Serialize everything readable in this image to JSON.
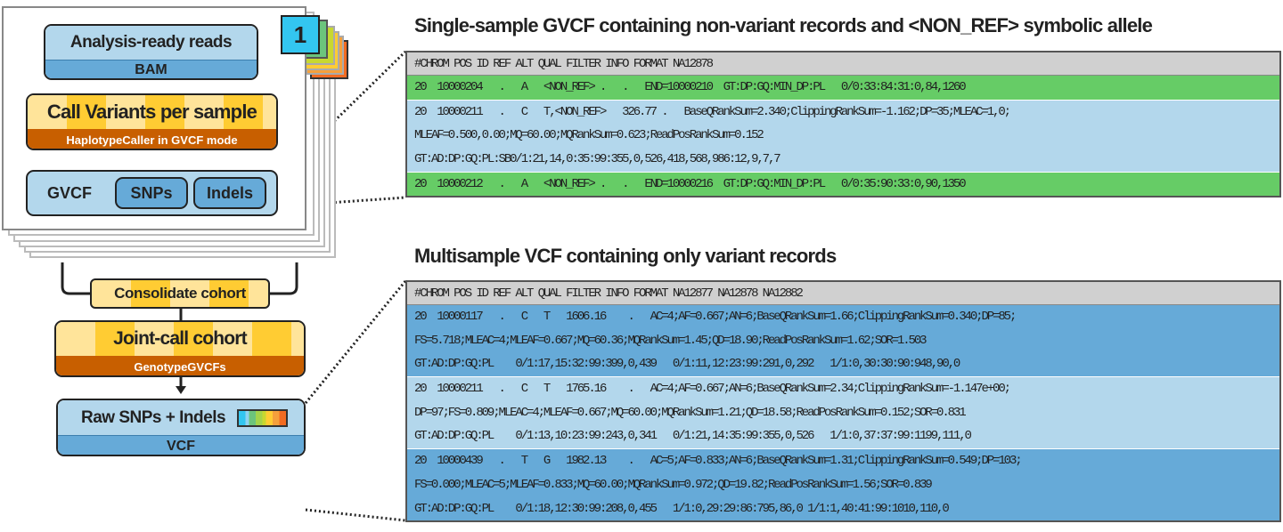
{
  "workflow": {
    "sample_badge": "1",
    "reads": {
      "title": "Analysis-ready reads",
      "format": "BAM"
    },
    "call": {
      "title": "Call Variants per sample",
      "tool": "HaplotypeCaller in GVCF mode"
    },
    "gvcf": {
      "label": "GVCF",
      "snps": "SNPs",
      "indels": "Indels"
    },
    "consolidate": "Consolidate cohort",
    "joint": {
      "title": "Joint-call cohort",
      "tool": "GenotypeGVCFs"
    },
    "raw": {
      "title": "Raw SNPs + Indels",
      "format": "VCF"
    },
    "colors": {
      "light_blue": "#b3d7ec",
      "blue": "#66aad8",
      "yellow": "#ffcc33",
      "orange": "#c85f00",
      "green": "#66cc66",
      "badge": "#33c6f0"
    }
  },
  "gvcf_panel": {
    "title": "Single-sample GVCF containing non-variant records and <NON_REF> symbolic allele",
    "header": "#CHROM POS ID REF ALT QUAL FILTER INFO FORMAT NA12878",
    "records": [
      {
        "lines": [
          "20  10000204   .   A   <NON_REF> .   .   END=10000210  GT:DP:GQ:MIN_DP:PL   0/0:33:84:31:0,84,1260"
        ]
      },
      {
        "lines": [
          "20  10000211   .   C   T,<NON_REF>   326.77 .   BaseQRankSum=2.340;ClippingRankSum=-1.162;DP=35;MLEAC=1,0;",
          "MLEAF=0.500,0.00;MQ=60.00;MQRankSum=0.623;ReadPosRankSum=0.152",
          "GT:AD:DP:GQ:PL:SB0/1:21,14,0:35:99:355,0,526,418,568,986:12,9,7,7"
        ]
      },
      {
        "lines": [
          "20  10000212   .   A   <NON_REF> .   .   END=10000216  GT:DP:GQ:MIN_DP:PL   0/0:35:90:33:0,90,1350"
        ]
      }
    ]
  },
  "vcf_panel": {
    "title": "Multisample VCF containing only variant records",
    "header": "#CHROM POS ID REF ALT QUAL FILTER INFO FORMAT NA12877 NA12878 NA12882",
    "records": [
      {
        "lines": [
          "20  10000117   .   C   T   1606.16    .   AC=4;AF=0.667;AN=6;BaseQRankSum=1.66;ClippingRankSum=0.340;DP=85;",
          "FS=5.718;MLEAC=4;MLEAF=0.667;MQ=60.36;MQRankSum=1.45;QD=18.90;ReadPosRankSum=1.62;SOR=1.503",
          "GT:AD:DP:GQ:PL    0/1:17,15:32:99:399,0,439   0/1:11,12:23:99:291,0,292   1/1:0,30:30:90:948,90,0"
        ]
      },
      {
        "lines": [
          "20  10000211   .   C   T   1765.16    .   AC=4;AF=0.667;AN=6;BaseQRankSum=2.34;ClippingRankSum=-1.147e+00;",
          "DP=97;FS=0.809;MLEAC=4;MLEAF=0.667;MQ=60.00;MQRankSum=1.21;QD=18.58;ReadPosRankSum=0.152;SOR=0.831",
          "GT:AD:DP:GQ:PL    0/1:13,10:23:99:243,0,341   0/1:21,14:35:99:355,0,526   1/1:0,37:37:99:1199,111,0"
        ]
      },
      {
        "lines": [
          "20  10000439   .   T   G   1982.13    .   AC=5;AF=0.833;AN=6;BaseQRankSum=1.31;ClippingRankSum=0.549;DP=103;",
          "FS=0.000;MLEAC=5;MLEAF=0.833;MQ=60.00;MQRankSum=0.972;QD=19.82;ReadPosRankSum=1.56;SOR=0.839",
          "GT:AD:DP:GQ:PL    0/1:18,12:30:99:208,0,455   1/1:0,29:29:86:795,86,0 1/1:1,40:41:99:1010,110,0"
        ]
      }
    ]
  }
}
